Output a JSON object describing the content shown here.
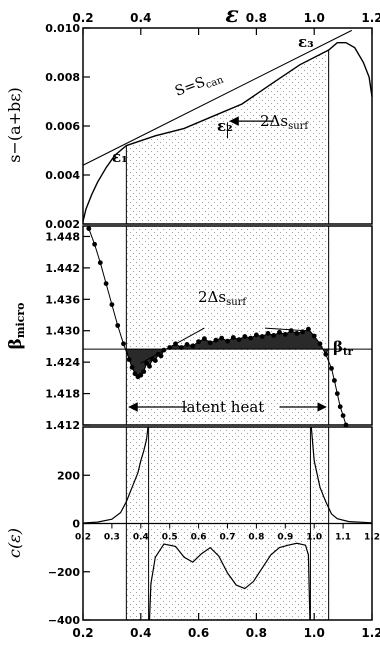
{
  "chart_data": {
    "type": "line",
    "x_axis": {
      "range": [
        0.2,
        1.2
      ],
      "ticks": [
        "0.2",
        "0.4",
        "0.6",
        "0.8",
        "1.0",
        "1.2"
      ],
      "top_ticks": [
        "0.2",
        "0.4",
        "0.6",
        "0.8",
        "1.0",
        "1.2"
      ],
      "inner_ticks": [
        "0.2",
        "0.3",
        "0.4",
        "0.5",
        "0.6",
        "0.7",
        "0.8",
        "0.9",
        "1.0",
        "1.1",
        "1.2"
      ],
      "top_label": "ε"
    },
    "markers": {
      "eps1": 0.35,
      "eps3": 1.05
    },
    "panels": [
      {
        "id": "entropy",
        "ylabel": "s−(a+bε)",
        "ylim": [
          0.002,
          0.01
        ],
        "yticks": [
          "0.002",
          "0.004",
          "0.006",
          "0.008",
          "0.010"
        ],
        "curve": [
          [
            0.2,
            0.0021
          ],
          [
            0.21,
            0.0026
          ],
          [
            0.23,
            0.0032
          ],
          [
            0.25,
            0.0037
          ],
          [
            0.28,
            0.0043
          ],
          [
            0.31,
            0.0048
          ],
          [
            0.35,
            0.0052
          ],
          [
            0.45,
            0.0056
          ],
          [
            0.55,
            0.0059
          ],
          [
            0.65,
            0.0064
          ],
          [
            0.75,
            0.0069
          ],
          [
            0.85,
            0.0077
          ],
          [
            0.95,
            0.0085
          ],
          [
            1.05,
            0.0091
          ],
          [
            1.08,
            0.0094
          ],
          [
            1.11,
            0.0094
          ],
          [
            1.14,
            0.0092
          ],
          [
            1.17,
            0.0086
          ],
          [
            1.19,
            0.008
          ],
          [
            1.2,
            0.0072
          ]
        ],
        "tangent_line": [
          [
            0.2,
            0.0044
          ],
          [
            1.13,
            0.0099
          ]
        ],
        "annotations": {
          "eps1": "ε₁",
          "eps2": "ε₂",
          "eps3": "ε₃",
          "scan": "S=S",
          "scan_sub": "can",
          "delta": "2Δs",
          "delta_sub": "surf"
        }
      },
      {
        "id": "beta",
        "ylabel": "β",
        "ylabel_sub": "micro",
        "ylim": [
          1.412,
          1.45
        ],
        "yticks": [
          "1.412",
          "1.418",
          "1.424",
          "1.430",
          "1.436",
          "1.442",
          "1.448"
        ],
        "beta_tr": 1.4265,
        "beta_tr_label": "β",
        "beta_tr_sub": "tr",
        "points": [
          [
            0.22,
            1.4495
          ],
          [
            0.24,
            1.4465
          ],
          [
            0.26,
            1.443
          ],
          [
            0.28,
            1.439
          ],
          [
            0.3,
            1.435
          ],
          [
            0.32,
            1.431
          ],
          [
            0.34,
            1.4275
          ],
          [
            0.36,
            1.4245
          ],
          [
            0.37,
            1.423
          ],
          [
            0.38,
            1.4218
          ],
          [
            0.39,
            1.4212
          ],
          [
            0.4,
            1.4215
          ],
          [
            0.41,
            1.4222
          ],
          [
            0.42,
            1.4238
          ],
          [
            0.43,
            1.4232
          ],
          [
            0.44,
            1.4246
          ],
          [
            0.45,
            1.4243
          ],
          [
            0.46,
            1.4255
          ],
          [
            0.47,
            1.4252
          ],
          [
            0.48,
            1.4263
          ],
          [
            0.5,
            1.4268
          ],
          [
            0.52,
            1.4275
          ],
          [
            0.54,
            1.4268
          ],
          [
            0.56,
            1.4274
          ],
          [
            0.58,
            1.4271
          ],
          [
            0.6,
            1.4279
          ],
          [
            0.62,
            1.4285
          ],
          [
            0.64,
            1.4277
          ],
          [
            0.66,
            1.4282
          ],
          [
            0.68,
            1.4286
          ],
          [
            0.7,
            1.428
          ],
          [
            0.72,
            1.4287
          ],
          [
            0.74,
            1.4283
          ],
          [
            0.76,
            1.4289
          ],
          [
            0.78,
            1.4286
          ],
          [
            0.8,
            1.4292
          ],
          [
            0.82,
            1.4289
          ],
          [
            0.84,
            1.4295
          ],
          [
            0.86,
            1.4291
          ],
          [
            0.88,
            1.4297
          ],
          [
            0.9,
            1.4293
          ],
          [
            0.92,
            1.43
          ],
          [
            0.94,
            1.4295
          ],
          [
            0.96,
            1.4298
          ],
          [
            0.98,
            1.4303
          ],
          [
            1.0,
            1.429
          ],
          [
            1.02,
            1.4275
          ],
          [
            1.04,
            1.4255
          ],
          [
            1.06,
            1.4228
          ],
          [
            1.07,
            1.4205
          ],
          [
            1.08,
            1.418
          ],
          [
            1.09,
            1.4155
          ],
          [
            1.1,
            1.4138
          ],
          [
            1.11,
            1.412
          ]
        ],
        "annotations": {
          "delta": "2Δs",
          "delta_sub": "surf",
          "latent": "latent heat"
        }
      },
      {
        "id": "specific_heat",
        "ylabel": "c(ε)",
        "ylim": [
          -400,
          400
        ],
        "yticks": [
          "200",
          "0",
          "−200",
          "−400"
        ],
        "ytick_values": [
          200,
          0,
          -200,
          -400
        ],
        "curve": [
          [
            0.2,
            2
          ],
          [
            0.25,
            6
          ],
          [
            0.3,
            18
          ],
          [
            0.33,
            45
          ],
          [
            0.35,
            90
          ],
          [
            0.37,
            150
          ],
          [
            0.39,
            210
          ],
          [
            0.4,
            260
          ],
          [
            0.41,
            300
          ],
          [
            0.42,
            350
          ],
          [
            0.425,
            400
          ]
        ],
        "curve_neg": [
          [
            0.43,
            -400
          ],
          [
            0.435,
            -250
          ],
          [
            0.45,
            -140
          ],
          [
            0.48,
            -85
          ],
          [
            0.52,
            -95
          ],
          [
            0.55,
            -140
          ],
          [
            0.58,
            -160
          ],
          [
            0.61,
            -125
          ],
          [
            0.64,
            -100
          ],
          [
            0.67,
            -135
          ],
          [
            0.7,
            -205
          ],
          [
            0.73,
            -255
          ],
          [
            0.76,
            -270
          ],
          [
            0.79,
            -240
          ],
          [
            0.82,
            -185
          ],
          [
            0.85,
            -130
          ],
          [
            0.88,
            -100
          ],
          [
            0.91,
            -90
          ],
          [
            0.94,
            -82
          ],
          [
            0.97,
            -90
          ],
          [
            0.98,
            -130
          ],
          [
            0.985,
            -400
          ]
        ],
        "curve_right": [
          [
            0.99,
            400
          ],
          [
            1.0,
            260
          ],
          [
            1.02,
            150
          ],
          [
            1.04,
            90
          ],
          [
            1.06,
            40
          ],
          [
            1.08,
            20
          ],
          [
            1.12,
            8
          ],
          [
            1.2,
            3
          ]
        ]
      }
    ]
  }
}
